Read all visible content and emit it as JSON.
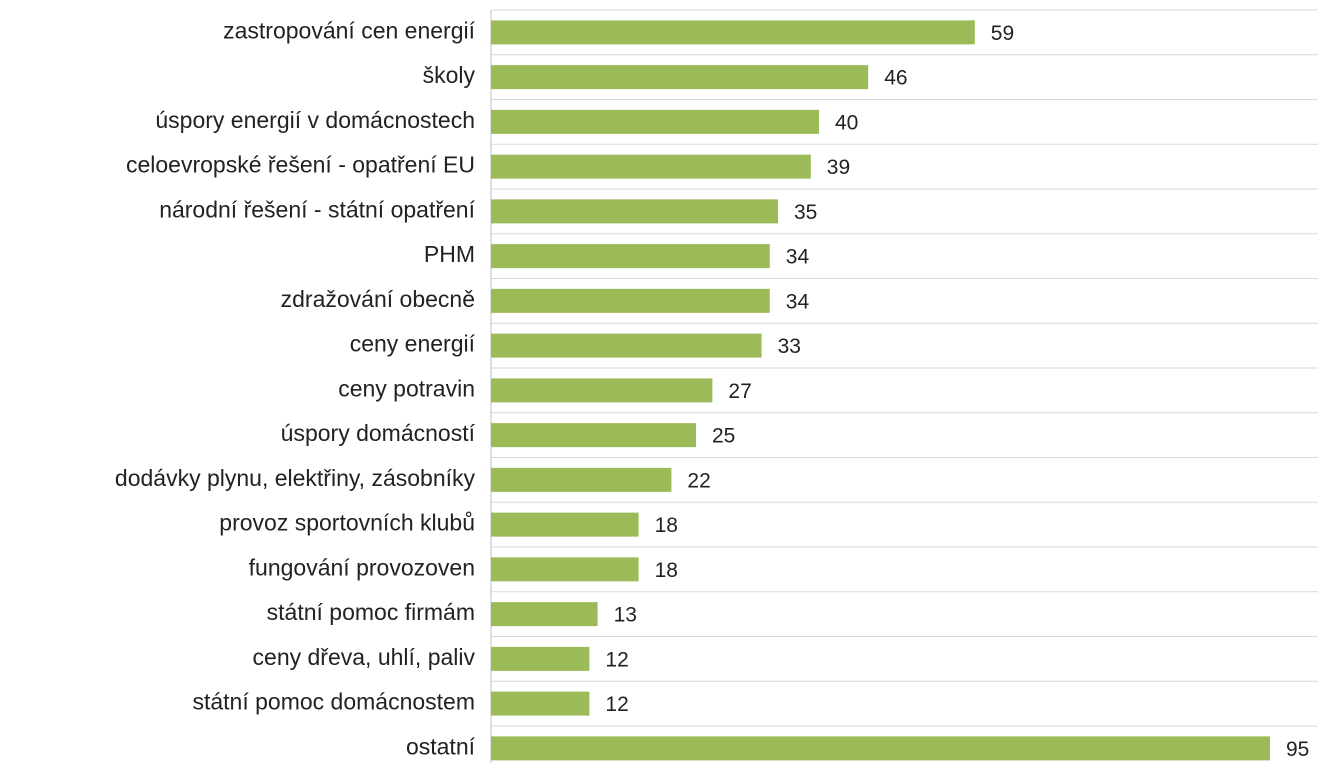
{
  "chart_data": {
    "type": "bar",
    "orientation": "horizontal",
    "categories": [
      "zastropování cen energií",
      "školy",
      "úspory energií v domácnostech",
      "celoevropské řešení - opatření EU",
      "národní řešení - státní opatření",
      "PHM",
      "zdražování obecně",
      "ceny energií",
      "ceny potravin",
      "úspory domácností",
      "dodávky plynu, elektřiny, zásobníky",
      "provoz sportovních klubů",
      "fungování provozoven",
      "státní pomoc firmám",
      "ceny dřeva, uhlí, paliv",
      "státní pomoc domácnostem",
      "ostatní"
    ],
    "values": [
      59,
      46,
      40,
      39,
      35,
      34,
      34,
      33,
      27,
      25,
      22,
      18,
      18,
      13,
      12,
      12,
      95
    ],
    "color": "#9bbb59",
    "grid": true
  }
}
